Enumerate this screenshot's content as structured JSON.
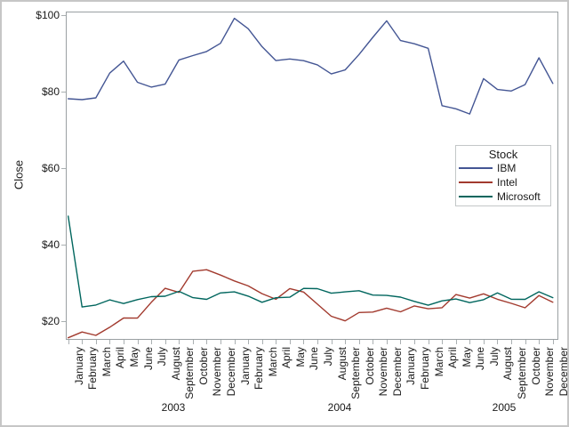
{
  "chart_data": {
    "type": "line",
    "title": "",
    "ylabel": "Close",
    "xlabel": "",
    "grid": false,
    "y_tick_labels": [
      "$20",
      "$40",
      "$60",
      "$80",
      "$100"
    ],
    "y_tick_values": [
      20,
      40,
      60,
      80,
      100
    ],
    "ylim": [
      15.1,
      101
    ],
    "x_tick_labels": [
      "January",
      "February",
      "March",
      "April",
      "May",
      "June",
      "July",
      "August",
      "September",
      "October",
      "November",
      "December",
      "January",
      "February",
      "March",
      "April",
      "May",
      "June",
      "July",
      "August",
      "September",
      "October",
      "November",
      "December",
      "January",
      "February",
      "March",
      "April",
      "May",
      "June",
      "July",
      "August",
      "September",
      "October",
      "November",
      "December"
    ],
    "year_labels": [
      "2003",
      "2004",
      "2005"
    ],
    "legend": {
      "title": "Stock",
      "position": "inside-right"
    },
    "series": [
      {
        "name": "IBM",
        "color": "#445694",
        "values": [
          78.2,
          77.95,
          78.43,
          84.9,
          88.04,
          82.5,
          81.25,
          82.01,
          88.33,
          89.48,
          90.54,
          92.68,
          99.23,
          96.5,
          91.84,
          88.17,
          88.59,
          88.15,
          87.07,
          84.69,
          85.74,
          89.75,
          94.24,
          98.58,
          93.42,
          92.58,
          91.38,
          76.38,
          75.55,
          74.2,
          83.46,
          80.62,
          80.22,
          81.88,
          88.9,
          82.2
        ]
      },
      {
        "name": "Intel",
        "color": "#A23A2E",
        "values": [
          15.64,
          17.17,
          16.28,
          18.4,
          20.81,
          20.78,
          24.92,
          28.58,
          27.52,
          33.06,
          33.45,
          32.05,
          30.52,
          29.22,
          27.2,
          25.73,
          28.53,
          27.6,
          24.45,
          21.29,
          20.06,
          22.26,
          22.38,
          23.39,
          22.45,
          23.99,
          23.23,
          23.51,
          26.96,
          26.03,
          27.14,
          25.73,
          24.65,
          23.5,
          26.7,
          24.96
        ]
      },
      {
        "name": "Microsoft",
        "color": "#01665E",
        "values": [
          47.46,
          23.7,
          24.21,
          25.57,
          24.61,
          25.64,
          26.41,
          26.52,
          27.8,
          26.14,
          25.71,
          27.37,
          27.65,
          26.53,
          24.93,
          26.13,
          26.25,
          28.56,
          28.49,
          27.32,
          27.65,
          27.97,
          26.81,
          26.72,
          26.28,
          25.16,
          24.17,
          25.3,
          25.8,
          24.84,
          25.61,
          27.39,
          25.73,
          25.7,
          27.68,
          26.15
        ]
      }
    ],
    "axis_color": "#9aa0a2",
    "tick_color": "#aab0b2",
    "text_color": "#1a1a1a"
  }
}
